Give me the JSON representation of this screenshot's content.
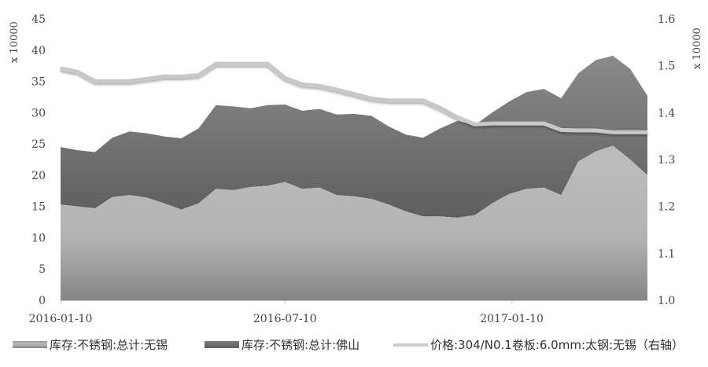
{
  "chart_data": {
    "type": "area",
    "stacked": true,
    "title": "",
    "left_axis": {
      "unit_label": "x 10000",
      "ylim": [
        0,
        45
      ],
      "ticks": [
        "0",
        "5",
        "10",
        "15",
        "20",
        "25",
        "30",
        "35",
        "40",
        "45"
      ]
    },
    "right_axis": {
      "unit_label": "x 10000",
      "ylim": [
        1.0,
        1.6
      ],
      "ticks": [
        "1.0",
        "1.1",
        "1.2",
        "1.3",
        "1.4",
        "1.5",
        "1.6"
      ]
    },
    "x_tick_labels": [
      "2016-01-10",
      "2016-07-10",
      "2017-01-10"
    ],
    "grid": false,
    "legend_position": "bottom",
    "x": [
      "2016-01-10",
      "2016-01-24",
      "2016-02-07",
      "2016-02-21",
      "2016-03-06",
      "2016-03-20",
      "2016-04-03",
      "2016-04-17",
      "2016-05-01",
      "2016-05-15",
      "2016-05-29",
      "2016-06-12",
      "2016-06-26",
      "2016-07-10",
      "2016-07-24",
      "2016-08-07",
      "2016-08-21",
      "2016-09-04",
      "2016-09-18",
      "2016-10-02",
      "2016-10-16",
      "2016-10-30",
      "2016-11-13",
      "2016-11-27",
      "2016-12-11",
      "2016-12-25",
      "2017-01-08",
      "2017-01-22",
      "2017-02-05",
      "2017-02-19",
      "2017-03-05",
      "2017-03-19",
      "2017-04-02",
      "2017-04-16",
      "2017-04-30"
    ],
    "series": [
      {
        "name": "库存:不锈钢:总计:无锡",
        "type": "area",
        "axis": "left",
        "color": "#b8b8b8",
        "values": [
          15.3,
          15.0,
          14.7,
          16.5,
          16.8,
          16.4,
          15.5,
          14.5,
          15.5,
          17.8,
          17.6,
          18.1,
          18.3,
          18.9,
          17.8,
          18.0,
          16.8,
          16.6,
          16.2,
          15.3,
          14.2,
          13.4,
          13.4,
          13.2,
          13.6,
          15.5,
          17.0,
          17.8,
          18.0,
          16.8,
          22.2,
          23.8,
          24.7,
          22.5,
          20.0
        ]
      },
      {
        "name": "库存:不锈钢:总计:佛山",
        "type": "area",
        "axis": "left",
        "color": "#6e6e6e",
        "values": [
          9.2,
          9.0,
          9.0,
          9.5,
          10.2,
          10.3,
          10.7,
          11.4,
          12.0,
          13.4,
          13.4,
          12.6,
          12.9,
          12.4,
          12.5,
          12.6,
          12.9,
          13.2,
          13.3,
          12.5,
          12.3,
          12.6,
          14.1,
          15.5,
          14.4,
          14.5,
          14.8,
          15.5,
          15.8,
          15.5,
          14.1,
          14.6,
          14.4,
          14.5,
          12.7
        ]
      },
      {
        "name": "价格:304/N0.1卷板:6.0mm:太钢:无锡（右轴）",
        "type": "line",
        "axis": "right",
        "color": "#c8c8c8",
        "values": [
          1.494,
          1.487,
          1.467,
          1.467,
          1.467,
          1.472,
          1.477,
          1.477,
          1.48,
          1.504,
          1.504,
          1.504,
          1.504,
          1.474,
          1.46,
          1.457,
          1.449,
          1.44,
          1.43,
          1.426,
          1.426,
          1.426,
          1.41,
          1.39,
          1.375,
          1.377,
          1.377,
          1.377,
          1.377,
          1.363,
          1.362,
          1.362,
          1.358,
          1.358,
          1.358
        ]
      }
    ]
  }
}
